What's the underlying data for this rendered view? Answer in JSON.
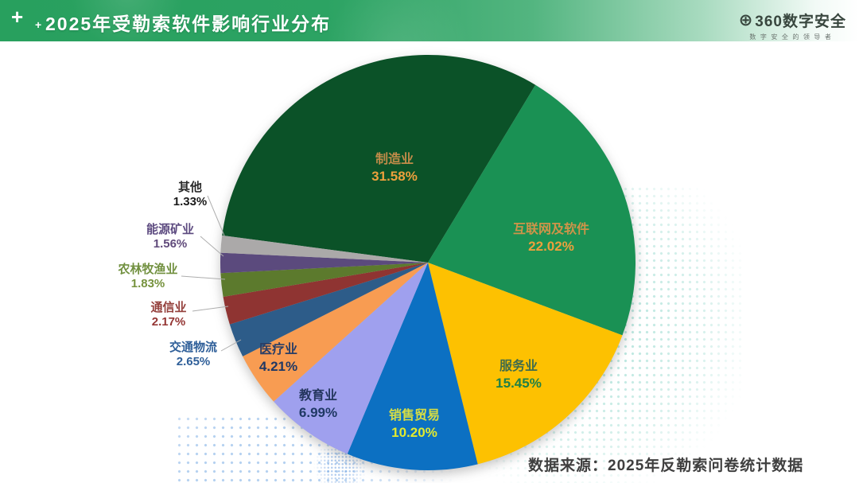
{
  "header": {
    "title": "2025年受勒索软件影响行业分布",
    "decoration_plus_big": "+",
    "decoration_plus_small": "+",
    "logo": {
      "symbol": "⊕",
      "brand": "360数字安全",
      "tagline": "数字安全的领导者"
    }
  },
  "footer": {
    "source": "数据来源：2025年反勒索问卷统计数据"
  },
  "chart_data": {
    "type": "pie",
    "title": "2025年受勒索软件影响行业分布",
    "direction": "clockwise",
    "start_angle_deg": 277.5,
    "legend": "none",
    "segments": [
      {
        "label": "制造业",
        "value": 31.58,
        "display": "31.58%",
        "color": "#0B5228",
        "label_color": "#C08B49",
        "value_color": "#EDA03C",
        "placement": "inside"
      },
      {
        "label": "互联网及软件",
        "value": 22.02,
        "display": "22.02%",
        "color": "#1A9154",
        "label_color": "#CE9449",
        "value_color": "#EDA03C",
        "placement": "inside"
      },
      {
        "label": "服务业",
        "value": 15.45,
        "display": "15.45%",
        "color": "#FDC101",
        "label_color": "#3E6B4D",
        "value_color": "#1F8045",
        "placement": "inside"
      },
      {
        "label": "销售贸易",
        "value": 10.2,
        "display": "10.20%",
        "color": "#0C70C2",
        "label_color": "#D6DD44",
        "value_color": "#E3EA2F",
        "placement": "inside"
      },
      {
        "label": "教育业",
        "value": 6.99,
        "display": "6.99%",
        "color": "#9FA0EE",
        "label_color": "#24365E",
        "value_color": "#1F3864",
        "placement": "inside"
      },
      {
        "label": "医疗业",
        "value": 4.21,
        "display": "4.21%",
        "color": "#F89C52",
        "label_color": "#2A3E66",
        "value_color": "#1F3864",
        "placement": "inside"
      },
      {
        "label": "交通物流",
        "value": 2.65,
        "display": "2.65%",
        "color": "#2D5C89",
        "label_color": "#2F5F99",
        "value_color": "#2F5F99",
        "placement": "outside"
      },
      {
        "label": "通信业",
        "value": 2.17,
        "display": "2.17%",
        "color": "#8F3432",
        "label_color": "#94403C",
        "value_color": "#943634",
        "placement": "outside"
      },
      {
        "label": "农林牧渔业",
        "value": 1.83,
        "display": "1.83%",
        "color": "#5C7A2D",
        "label_color": "#71903F",
        "value_color": "#76923D",
        "placement": "outside"
      },
      {
        "label": "能源矿业",
        "value": 1.56,
        "display": "1.56%",
        "color": "#5B4A7D",
        "label_color": "#5D4B80",
        "value_color": "#604A7B",
        "placement": "outside"
      },
      {
        "label": "其他",
        "value": 1.33,
        "display": "1.33%",
        "color": "#ABA9A9",
        "label_color": "#2B2B2B",
        "value_color": "#1A1A1A",
        "placement": "outside"
      }
    ]
  }
}
